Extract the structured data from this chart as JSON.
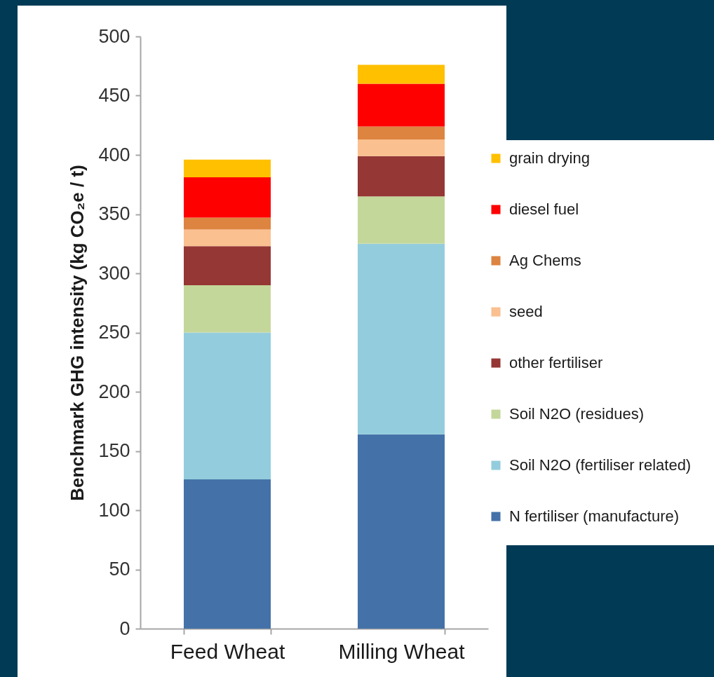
{
  "chart_data": {
    "type": "bar",
    "stacked": true,
    "ylabel": "Benchmark GHG intensity (kg CO₂e / t)",
    "categories": [
      "Feed Wheat",
      "Milling Wheat"
    ],
    "series": [
      {
        "name": "N fertiliser (manufacture)",
        "color": "#4472a8",
        "values": [
          126,
          164
        ]
      },
      {
        "name": "Soil N2O (fertiliser related)",
        "color": "#93cddd",
        "values": [
          124,
          161
        ]
      },
      {
        "name": "Soil N2O (residues)",
        "color": "#c4d79b",
        "values": [
          40,
          40
        ]
      },
      {
        "name": "other fertiliser",
        "color": "#953735",
        "values": [
          33,
          34
        ]
      },
      {
        "name": "seed",
        "color": "#fac090",
        "values": [
          14,
          14
        ]
      },
      {
        "name": "Ag Chems",
        "color": "#dd8440",
        "values": [
          10,
          11
        ]
      },
      {
        "name": "diesel fuel",
        "color": "#ff0000",
        "values": [
          34,
          36
        ]
      },
      {
        "name": "grain drying",
        "color": "#ffc000",
        "values": [
          15,
          16
        ]
      }
    ],
    "ylim": [
      0,
      500
    ],
    "yticks": [
      0,
      50,
      100,
      150,
      200,
      250,
      300,
      350,
      400,
      450,
      500
    ],
    "grid": false,
    "legend": "right"
  }
}
